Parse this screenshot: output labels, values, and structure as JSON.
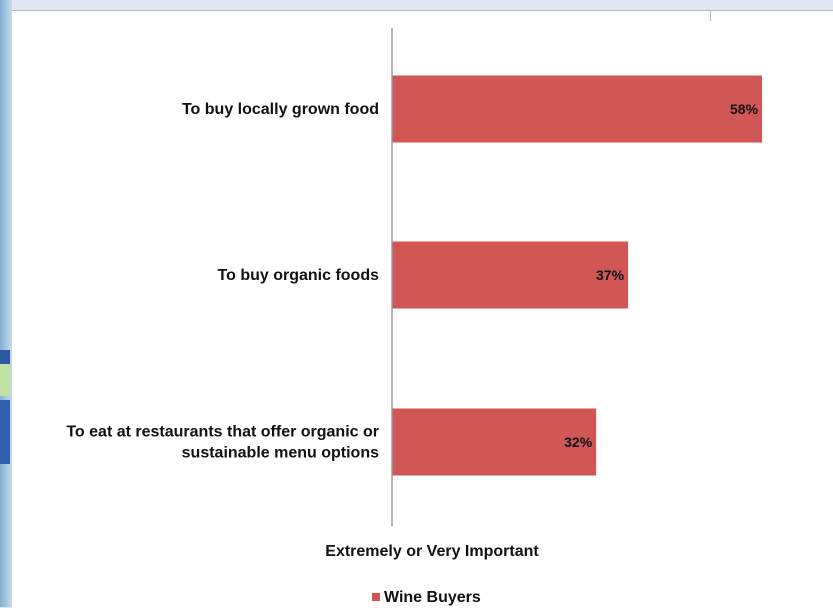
{
  "chart_data": {
    "type": "bar",
    "orientation": "horizontal",
    "categories": [
      "To buy locally grown food",
      "To buy organic foods",
      "To eat at restaurants that offer organic or sustainable menu options"
    ],
    "category_lines": [
      [
        "To buy locally grown food"
      ],
      [
        "To buy organic foods"
      ],
      [
        "To eat at restaurants that offer organic or",
        "sustainable menu options"
      ]
    ],
    "series": [
      {
        "name": "Wine Buyers",
        "values": [
          58,
          37,
          32
        ],
        "labels": [
          "58%",
          "37%",
          "32%"
        ]
      }
    ],
    "xlabel": "Extremely or Very Important",
    "xlim": [
      0,
      100
    ],
    "grid": false,
    "legend_position": "bottom",
    "colors": {
      "bar": "#d15757",
      "axis": "#9a9a9a"
    }
  }
}
